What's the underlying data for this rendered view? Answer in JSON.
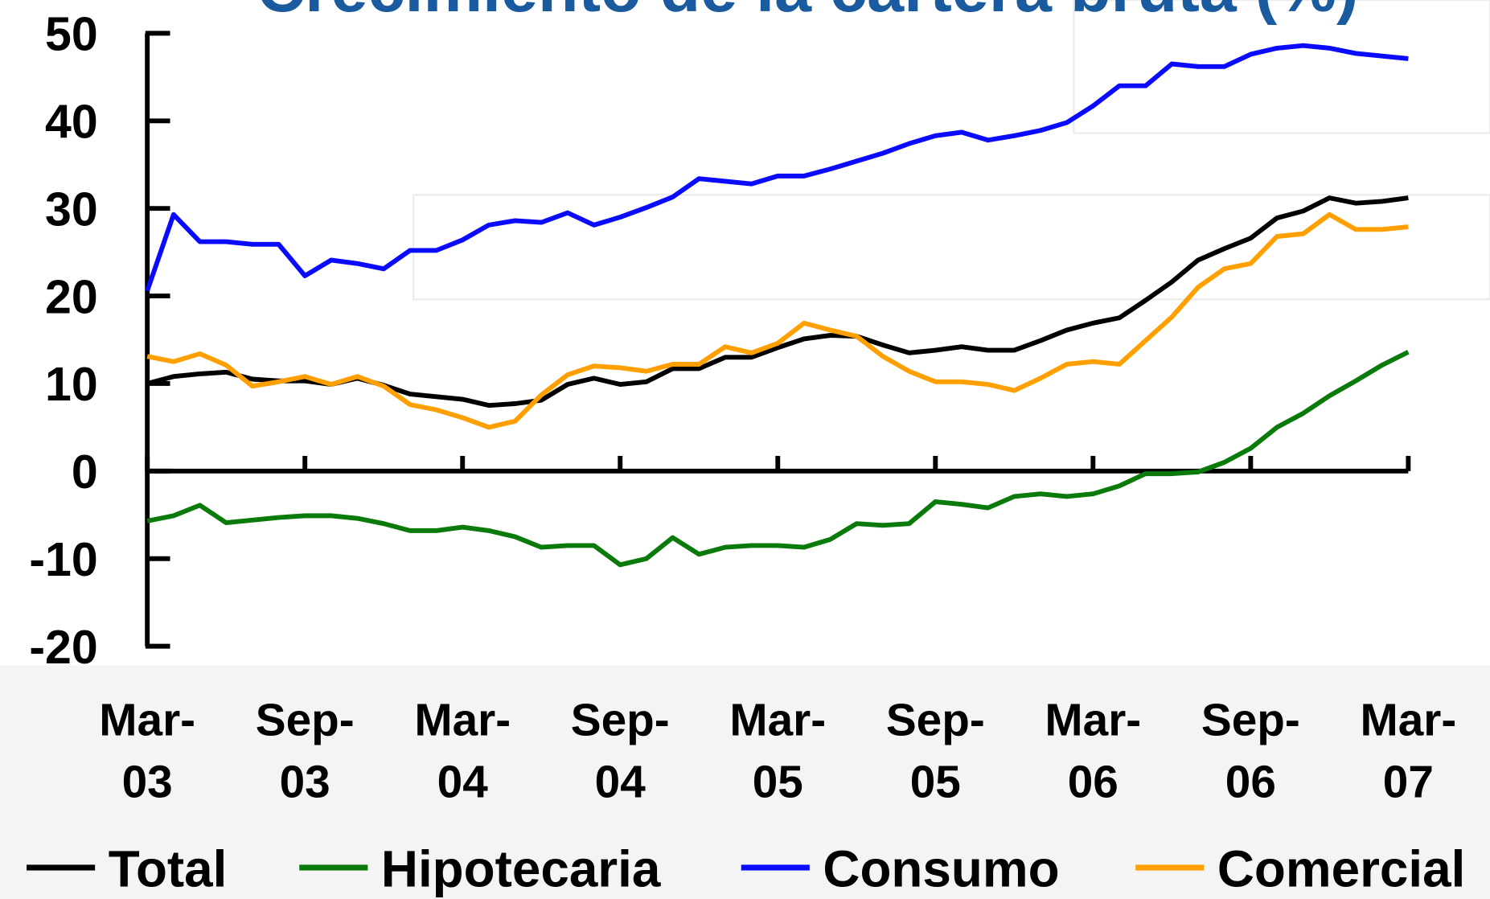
{
  "chart_data": {
    "type": "line",
    "title": "Crecimiento de la cartera bruta (%)",
    "categories": [
      "Mar-03",
      null,
      null,
      null,
      null,
      null,
      "Sep-03",
      null,
      null,
      null,
      null,
      null,
      "Mar-04",
      null,
      null,
      null,
      null,
      null,
      "Sep-04",
      null,
      null,
      null,
      null,
      null,
      "Mar-05",
      null,
      null,
      null,
      null,
      null,
      "Sep-05",
      null,
      null,
      null,
      null,
      null,
      "Mar-06",
      null,
      null,
      null,
      null,
      null,
      "Sep-06",
      null,
      null,
      null,
      null,
      null,
      "Mar-07"
    ],
    "series": [
      {
        "name": "Total",
        "color": "#000000",
        "values": [
          10.0,
          10.8,
          11.1,
          11.3,
          10.5,
          10.3,
          10.3,
          9.9,
          10.6,
          9.8,
          8.8,
          8.5,
          8.2,
          7.5,
          7.7,
          8.1,
          9.9,
          10.6,
          9.9,
          10.2,
          11.7,
          11.7,
          13.0,
          13.0,
          14.1,
          15.1,
          15.5,
          15.4,
          14.4,
          13.5,
          13.8,
          14.2,
          13.8,
          13.8,
          14.9,
          16.1,
          16.9,
          17.5,
          19.5,
          21.6,
          24.1,
          25.4,
          26.6,
          28.9,
          29.7,
          31.2,
          30.6,
          30.8,
          31.2
        ]
      },
      {
        "name": "Hipotecaria",
        "color": "#0a7a0a",
        "values": [
          -5.7,
          -5.1,
          -3.9,
          -5.9,
          -5.6,
          -5.3,
          -5.1,
          -5.1,
          -5.4,
          -6.0,
          -6.8,
          -6.8,
          -6.4,
          -6.8,
          -7.5,
          -8.7,
          -8.5,
          -8.5,
          -10.7,
          -10.0,
          -7.6,
          -9.5,
          -8.7,
          -8.5,
          -8.5,
          -8.7,
          -7.8,
          -6.0,
          -6.2,
          -6.0,
          -3.5,
          -3.8,
          -4.2,
          -2.9,
          -2.6,
          -2.9,
          -2.6,
          -1.7,
          -0.3,
          -0.3,
          -0.1,
          1.0,
          2.6,
          5.0,
          6.6,
          8.6,
          10.3,
          12.1,
          13.6
        ]
      },
      {
        "name": "Consumo",
        "color": "#0a0aff",
        "values": [
          20.6,
          29.3,
          26.2,
          26.2,
          25.9,
          25.9,
          22.3,
          24.1,
          23.7,
          23.1,
          25.2,
          25.2,
          26.4,
          28.1,
          28.6,
          28.4,
          29.5,
          28.1,
          29.0,
          30.1,
          31.3,
          33.4,
          33.1,
          32.8,
          33.7,
          33.7,
          34.5,
          35.4,
          36.3,
          37.4,
          38.3,
          38.7,
          37.8,
          38.3,
          38.9,
          39.8,
          41.7,
          44.0,
          44.0,
          46.5,
          46.2,
          46.2,
          47.6,
          48.3,
          48.6,
          48.3,
          47.7,
          47.4,
          47.1
        ]
      },
      {
        "name": "Comercial",
        "color": "#ffa000",
        "values": [
          13.1,
          12.5,
          13.4,
          12.1,
          9.7,
          10.2,
          10.8,
          9.9,
          10.8,
          9.7,
          7.6,
          7.0,
          6.1,
          5.0,
          5.7,
          8.7,
          11.0,
          12.0,
          11.8,
          11.4,
          12.2,
          12.2,
          14.2,
          13.5,
          14.6,
          16.9,
          16.1,
          15.4,
          13.1,
          11.4,
          10.2,
          10.2,
          9.9,
          9.2,
          10.6,
          12.2,
          12.5,
          12.2,
          14.9,
          17.6,
          21.0,
          23.1,
          23.7,
          26.8,
          27.1,
          29.3,
          27.6,
          27.6,
          27.9
        ]
      }
    ],
    "ylim": [
      -20,
      50
    ],
    "yticks": [
      -20,
      -10,
      0,
      10,
      20,
      30,
      40,
      50
    ],
    "grid": false,
    "legend": "bottom"
  }
}
